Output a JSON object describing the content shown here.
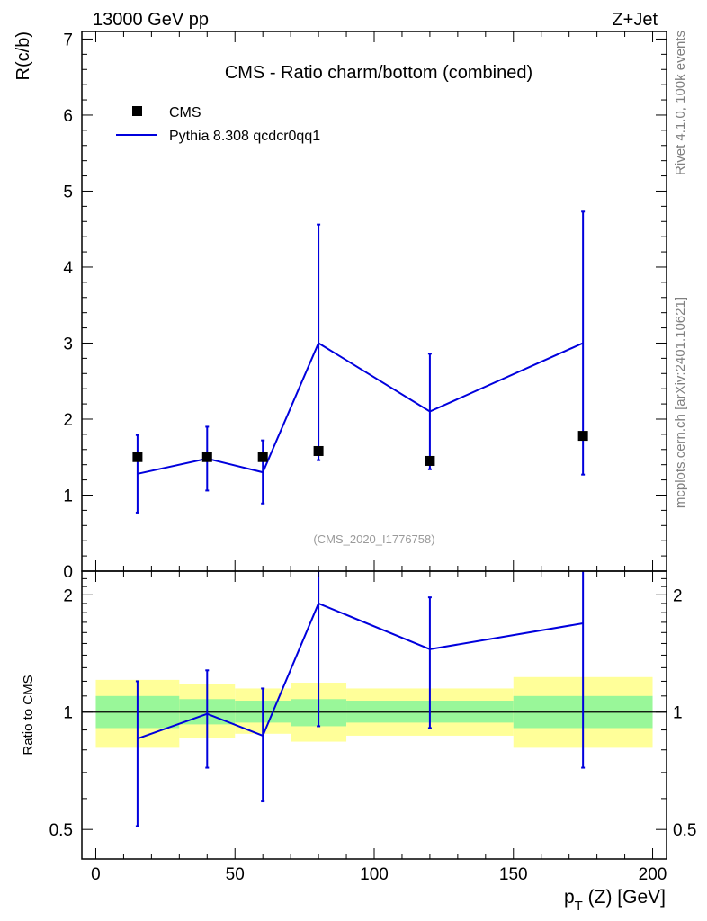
{
  "header": {
    "left": "13000 GeV pp",
    "right": "Z+Jet"
  },
  "side_labels": {
    "rivet": "Rivet 4.1.0,  100k events",
    "mcplots": "mcplots.cern.ch [arXiv:2401.10621]"
  },
  "chart_data": {
    "type": "scatter",
    "title": "CMS - Ratio charm/bottom (combined)",
    "analysis_id": "(CMS_2020_I1776758)",
    "xlabel_main": "p",
    "xlabel_sub": "T",
    "xlabel_rest": " (Z) [GeV]",
    "ylabel": "R(c/b)",
    "ratio_ylabel": "Ratio to CMS",
    "xlim": [
      -5,
      205
    ],
    "ylim": [
      0,
      7.1
    ],
    "ratio_ylim": [
      0.42,
      2.3
    ],
    "x_ticks": [
      0,
      50,
      100,
      150,
      200
    ],
    "y_ticks": [
      0,
      1,
      2,
      3,
      4,
      5,
      6,
      7
    ],
    "ratio_ticks": [
      0.5,
      1,
      2
    ],
    "colors": {
      "data": "#000000",
      "mc": "#0000dd",
      "band_inner": "#99f799",
      "band_outer": "#ffff99",
      "ref_line": "#000000",
      "analysis_id": "#9a9a9a",
      "side_text": "#808080"
    },
    "legend": [
      {
        "name": "CMS",
        "marker": "square"
      },
      {
        "name": "Pythia 8.308 qcdcr0qq1",
        "marker": "line"
      }
    ],
    "data_series": {
      "name": "CMS",
      "bins": [
        {
          "x": 15,
          "xlo": 0,
          "xhi": 30,
          "y": 1.5,
          "band_inner": [
            0.91,
            1.1
          ],
          "band_outer": [
            0.81,
            1.21
          ]
        },
        {
          "x": 40,
          "xlo": 30,
          "xhi": 50,
          "y": 1.5,
          "band_inner": [
            0.93,
            1.08
          ],
          "band_outer": [
            0.86,
            1.18
          ]
        },
        {
          "x": 60,
          "xlo": 50,
          "xhi": 70,
          "y": 1.5,
          "band_inner": [
            0.94,
            1.07
          ],
          "band_outer": [
            0.88,
            1.15
          ]
        },
        {
          "x": 80,
          "xlo": 70,
          "xhi": 90,
          "y": 1.58,
          "band_inner": [
            0.92,
            1.08
          ],
          "band_outer": [
            0.84,
            1.19
          ]
        },
        {
          "x": 120,
          "xlo": 90,
          "xhi": 150,
          "y": 1.45,
          "band_inner": [
            0.94,
            1.07
          ],
          "band_outer": [
            0.87,
            1.15
          ]
        },
        {
          "x": 175,
          "xlo": 150,
          "xhi": 200,
          "y": 1.78,
          "band_inner": [
            0.91,
            1.1
          ],
          "band_outer": [
            0.81,
            1.23
          ]
        }
      ]
    },
    "mc_series": {
      "name": "Pythia 8.308 qcdcr0qq1",
      "points": [
        {
          "x": 15,
          "y": 1.28,
          "ylo": 0.77,
          "yhi": 1.79,
          "ratio": 0.855,
          "ratio_lo": 0.51,
          "ratio_hi": 1.2
        },
        {
          "x": 40,
          "y": 1.48,
          "ylo": 1.06,
          "yhi": 1.9,
          "ratio": 0.99,
          "ratio_lo": 0.72,
          "ratio_hi": 1.28
        },
        {
          "x": 60,
          "y": 1.3,
          "ylo": 0.89,
          "yhi": 1.72,
          "ratio": 0.87,
          "ratio_lo": 0.59,
          "ratio_hi": 1.15
        },
        {
          "x": 80,
          "y": 3.0,
          "ylo": 1.46,
          "yhi": 4.56,
          "ratio": 1.9,
          "ratio_lo": 0.92,
          "ratio_hi": 2.3
        },
        {
          "x": 120,
          "y": 2.1,
          "ylo": 1.34,
          "yhi": 2.86,
          "ratio": 1.45,
          "ratio_lo": 0.91,
          "ratio_hi": 1.97
        },
        {
          "x": 175,
          "y": 3.0,
          "ylo": 1.27,
          "yhi": 4.73,
          "ratio": 1.69,
          "ratio_lo": 0.72,
          "ratio_hi": 2.3
        }
      ]
    }
  }
}
